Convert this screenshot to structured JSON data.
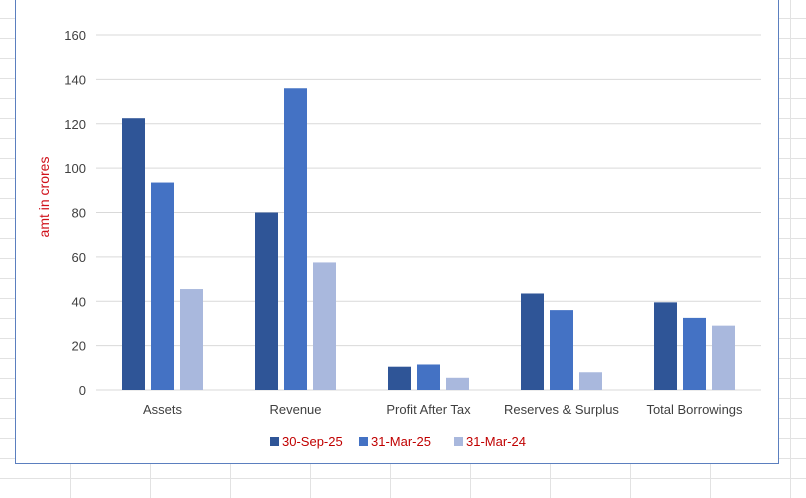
{
  "chart_data": {
    "type": "bar",
    "categories": [
      "Assets",
      "Revenue",
      "Profit After Tax",
      "Reserves & Surplus",
      "Total Borrowings"
    ],
    "series": [
      {
        "name": "30-Sep-25",
        "color": "#2f5597",
        "values": [
          122.5,
          80,
          10.5,
          43.5,
          39.5
        ]
      },
      {
        "name": "31-Mar-25",
        "color": "#4472c4",
        "values": [
          93.5,
          136,
          11.5,
          36,
          32.5
        ]
      },
      {
        "name": "31-Mar-24",
        "color": "#a9b8dd",
        "values": [
          45.5,
          57.5,
          5.5,
          8,
          29
        ]
      }
    ],
    "ylabel": "amt in crores",
    "ylim": [
      0,
      160
    ],
    "yticks": [
      "0",
      "20",
      "40",
      "60",
      "80",
      "100",
      "120",
      "140",
      "160"
    ],
    "grid": true,
    "legend_position": "bottom"
  }
}
